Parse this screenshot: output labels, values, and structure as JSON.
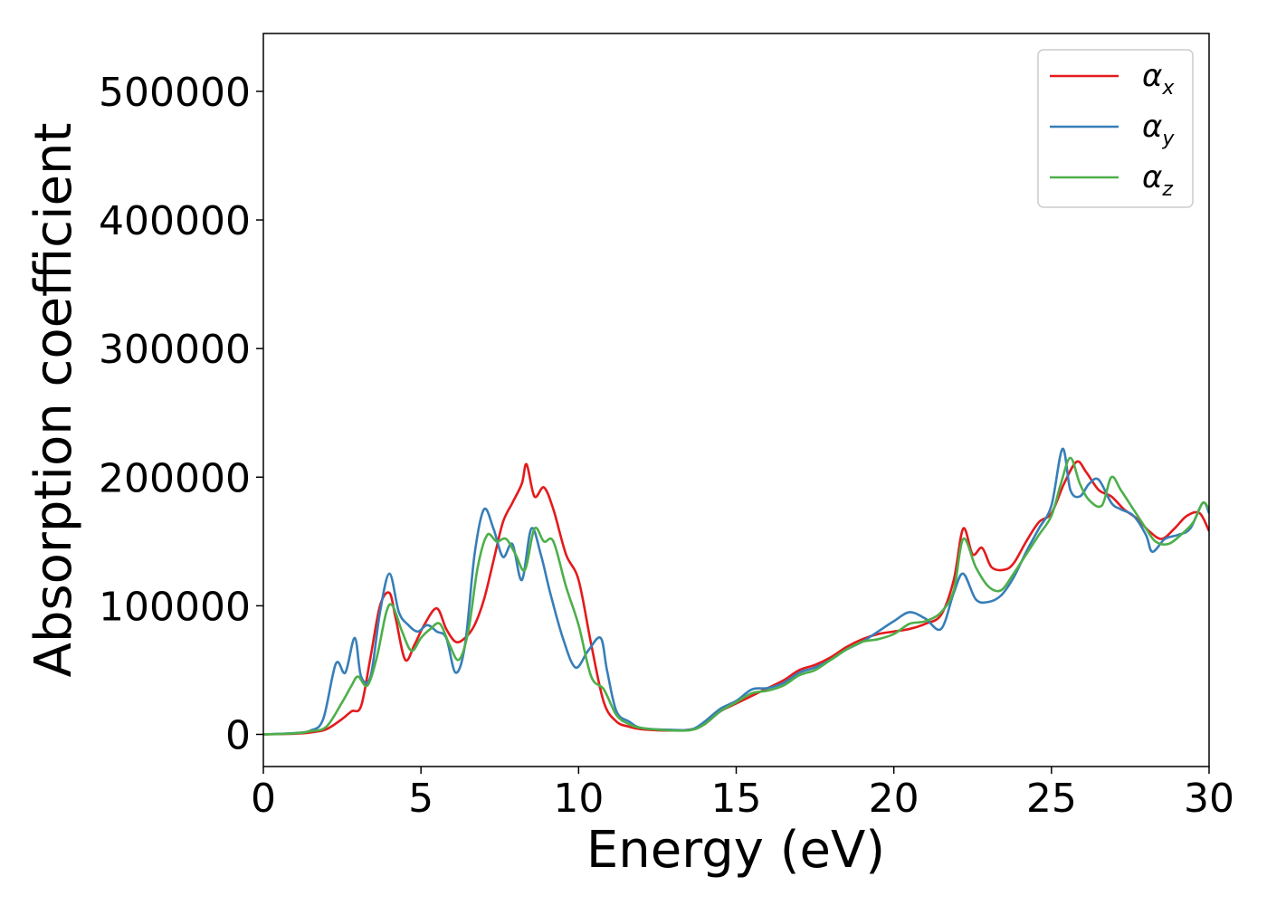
{
  "chart_data": {
    "type": "line",
    "xlabel": "Energy (eV)",
    "ylabel": "Absorption coefficient",
    "xlim": [
      0,
      30
    ],
    "ylim": [
      -25000,
      545000
    ],
    "x_ticks": [
      0,
      5,
      10,
      15,
      20,
      25,
      30
    ],
    "y_ticks": [
      0,
      100000,
      200000,
      300000,
      400000,
      500000
    ],
    "x_tick_labels": [
      "0",
      "5",
      "10",
      "15",
      "20",
      "25",
      "30"
    ],
    "y_tick_labels": [
      "0",
      "100000",
      "200000",
      "300000",
      "400000",
      "500000"
    ],
    "legend_placement": "top-right",
    "grid": false,
    "series": [
      {
        "name": "α",
        "subscript": "x",
        "color": "#e41a1c",
        "x": [
          0,
          1,
          1.5,
          2,
          2.5,
          2.8,
          3.1,
          3.4,
          3.7,
          4.0,
          4.2,
          4.5,
          4.8,
          5.1,
          5.5,
          5.8,
          6.1,
          6.4,
          6.7,
          7.0,
          7.3,
          7.6,
          7.9,
          8.2,
          8.35,
          8.6,
          8.9,
          9.2,
          9.6,
          10.0,
          10.4,
          10.8,
          11.2,
          11.6,
          12.0,
          13.0,
          13.6,
          14.0,
          14.5,
          15.0,
          15.5,
          16.0,
          16.5,
          17.0,
          17.5,
          18.0,
          18.5,
          19.0,
          19.5,
          20.0,
          20.5,
          21.0,
          21.5,
          21.9,
          22.2,
          22.5,
          22.8,
          23.1,
          23.5,
          23.8,
          24.2,
          24.6,
          25.0,
          25.4,
          25.8,
          26.1,
          26.5,
          26.9,
          27.3,
          27.7,
          28.1,
          28.5,
          28.9,
          29.3,
          29.7,
          30.0
        ],
        "y": [
          0,
          500,
          1500,
          4000,
          12000,
          18000,
          22000,
          60000,
          100000,
          110000,
          90000,
          58000,
          70000,
          85000,
          98000,
          82000,
          72000,
          75000,
          85000,
          105000,
          135000,
          165000,
          180000,
          195000,
          210000,
          185000,
          192000,
          175000,
          140000,
          120000,
          70000,
          25000,
          10000,
          6000,
          4000,
          3000,
          4000,
          8000,
          18000,
          24000,
          30000,
          36000,
          42000,
          50000,
          54000,
          60000,
          68000,
          74000,
          78000,
          80000,
          82000,
          86000,
          93000,
          120000,
          160000,
          140000,
          145000,
          130000,
          128000,
          133000,
          150000,
          165000,
          172000,
          195000,
          212000,
          204000,
          190000,
          185000,
          175000,
          168000,
          158000,
          152000,
          160000,
          170000,
          172000,
          158000
        ]
      },
      {
        "name": "α",
        "subscript": "y",
        "color": "#377eb8",
        "x": [
          0,
          1,
          1.5,
          1.9,
          2.3,
          2.6,
          2.9,
          3.1,
          3.4,
          3.7,
          4.0,
          4.3,
          4.6,
          4.9,
          5.2,
          5.5,
          5.8,
          6.1,
          6.4,
          6.7,
          7.0,
          7.3,
          7.6,
          7.9,
          8.2,
          8.5,
          8.8,
          9.1,
          9.5,
          9.9,
          10.3,
          10.7,
          10.9,
          11.2,
          11.6,
          12.0,
          13.0,
          13.6,
          14.0,
          14.5,
          15.0,
          15.5,
          16.0,
          16.5,
          17.0,
          17.5,
          18.0,
          18.5,
          19.0,
          19.5,
          20.0,
          20.5,
          21.0,
          21.5,
          21.9,
          22.2,
          22.6,
          23.0,
          23.4,
          23.8,
          24.2,
          24.6,
          25.0,
          25.35,
          25.6,
          25.9,
          26.2,
          26.5,
          26.9,
          27.2,
          27.6,
          28.0,
          28.2,
          28.6,
          29.0,
          29.4,
          29.8,
          30.0
        ],
        "y": [
          0,
          1000,
          3000,
          12000,
          55000,
          48000,
          75000,
          45000,
          45000,
          95000,
          125000,
          95000,
          85000,
          80000,
          85000,
          80000,
          75000,
          48000,
          70000,
          140000,
          175000,
          160000,
          138000,
          148000,
          120000,
          160000,
          140000,
          110000,
          75000,
          52000,
          65000,
          75000,
          50000,
          18000,
          10000,
          5000,
          3500,
          4000,
          10000,
          20000,
          26000,
          35000,
          36000,
          40000,
          48000,
          52000,
          58000,
          66000,
          72000,
          80000,
          88000,
          95000,
          90000,
          82000,
          110000,
          125000,
          105000,
          103000,
          108000,
          122000,
          142000,
          160000,
          178000,
          222000,
          190000,
          185000,
          195000,
          198000,
          180000,
          175000,
          170000,
          155000,
          142000,
          152000,
          155000,
          160000,
          180000,
          172000
        ]
      },
      {
        "name": "α",
        "subscript": "z",
        "color": "#4daf4a",
        "x": [
          0,
          1,
          1.5,
          2,
          2.5,
          2.8,
          3.0,
          3.3,
          3.6,
          3.9,
          4.1,
          4.4,
          4.7,
          5.0,
          5.3,
          5.6,
          5.9,
          6.2,
          6.5,
          6.8,
          7.1,
          7.4,
          7.7,
          8.0,
          8.3,
          8.6,
          8.9,
          9.2,
          9.6,
          10.0,
          10.4,
          10.8,
          11.2,
          11.6,
          12.0,
          13.0,
          13.6,
          14.0,
          14.5,
          15.0,
          15.5,
          16.0,
          16.5,
          17.0,
          17.5,
          18.0,
          18.5,
          19.0,
          19.5,
          20.0,
          20.5,
          21.0,
          21.5,
          21.9,
          22.2,
          22.6,
          23.0,
          23.4,
          23.8,
          24.2,
          24.6,
          25.0,
          25.3,
          25.6,
          25.9,
          26.2,
          26.6,
          26.9,
          27.2,
          27.6,
          28.0,
          28.3,
          28.7,
          29.1,
          29.5,
          29.8,
          30.0
        ],
        "y": [
          0,
          800,
          2500,
          6000,
          25000,
          38000,
          45000,
          38000,
          60000,
          95000,
          100000,
          80000,
          65000,
          75000,
          82000,
          86000,
          70000,
          58000,
          80000,
          130000,
          155000,
          150000,
          152000,
          140000,
          128000,
          160000,
          150000,
          150000,
          115000,
          85000,
          45000,
          35000,
          15000,
          8000,
          5000,
          3000,
          3500,
          8000,
          18000,
          25000,
          32000,
          34000,
          38000,
          46000,
          50000,
          58000,
          66000,
          72000,
          74000,
          78000,
          86000,
          88000,
          95000,
          112000,
          152000,
          130000,
          115000,
          112000,
          125000,
          140000,
          155000,
          170000,
          195000,
          215000,
          195000,
          182000,
          178000,
          200000,
          190000,
          175000,
          160000,
          150000,
          148000,
          155000,
          165000,
          180000,
          175000
        ]
      }
    ]
  }
}
